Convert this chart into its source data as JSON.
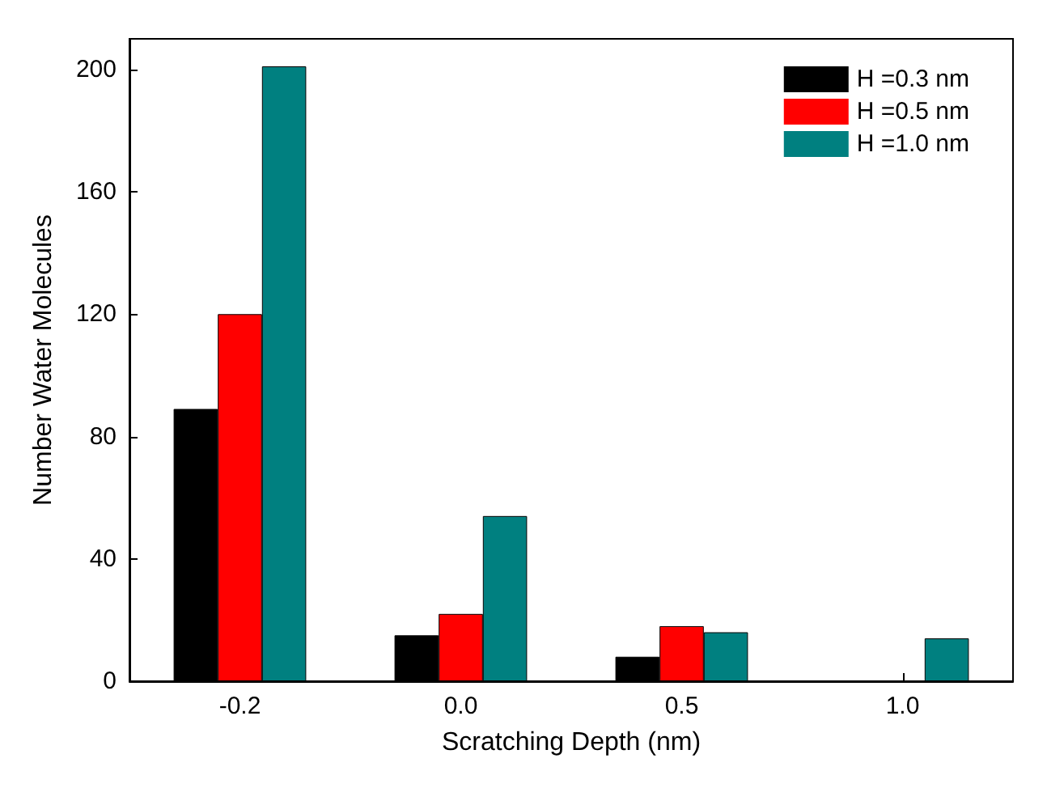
{
  "chart_data": {
    "type": "bar",
    "xlabel": "Scratching Depth (nm)",
    "ylabel": "Number Water Molecules",
    "categories": [
      "-0.2",
      "0.0",
      "0.5",
      "1.0"
    ],
    "series": [
      {
        "name": "H =0.3 nm",
        "color": "#000000",
        "values": [
          89,
          15,
          8,
          null
        ]
      },
      {
        "name": "H =0.5 nm",
        "color": "#ff0000",
        "values": [
          120,
          22,
          18,
          null
        ]
      },
      {
        "name": "H =1.0 nm",
        "color": "#008080",
        "values": [
          201,
          54,
          16,
          14
        ]
      }
    ],
    "ylim": [
      0,
      210
    ],
    "yticks": [
      0,
      40,
      80,
      120,
      160,
      200
    ],
    "grid": false,
    "legend": "top right"
  }
}
